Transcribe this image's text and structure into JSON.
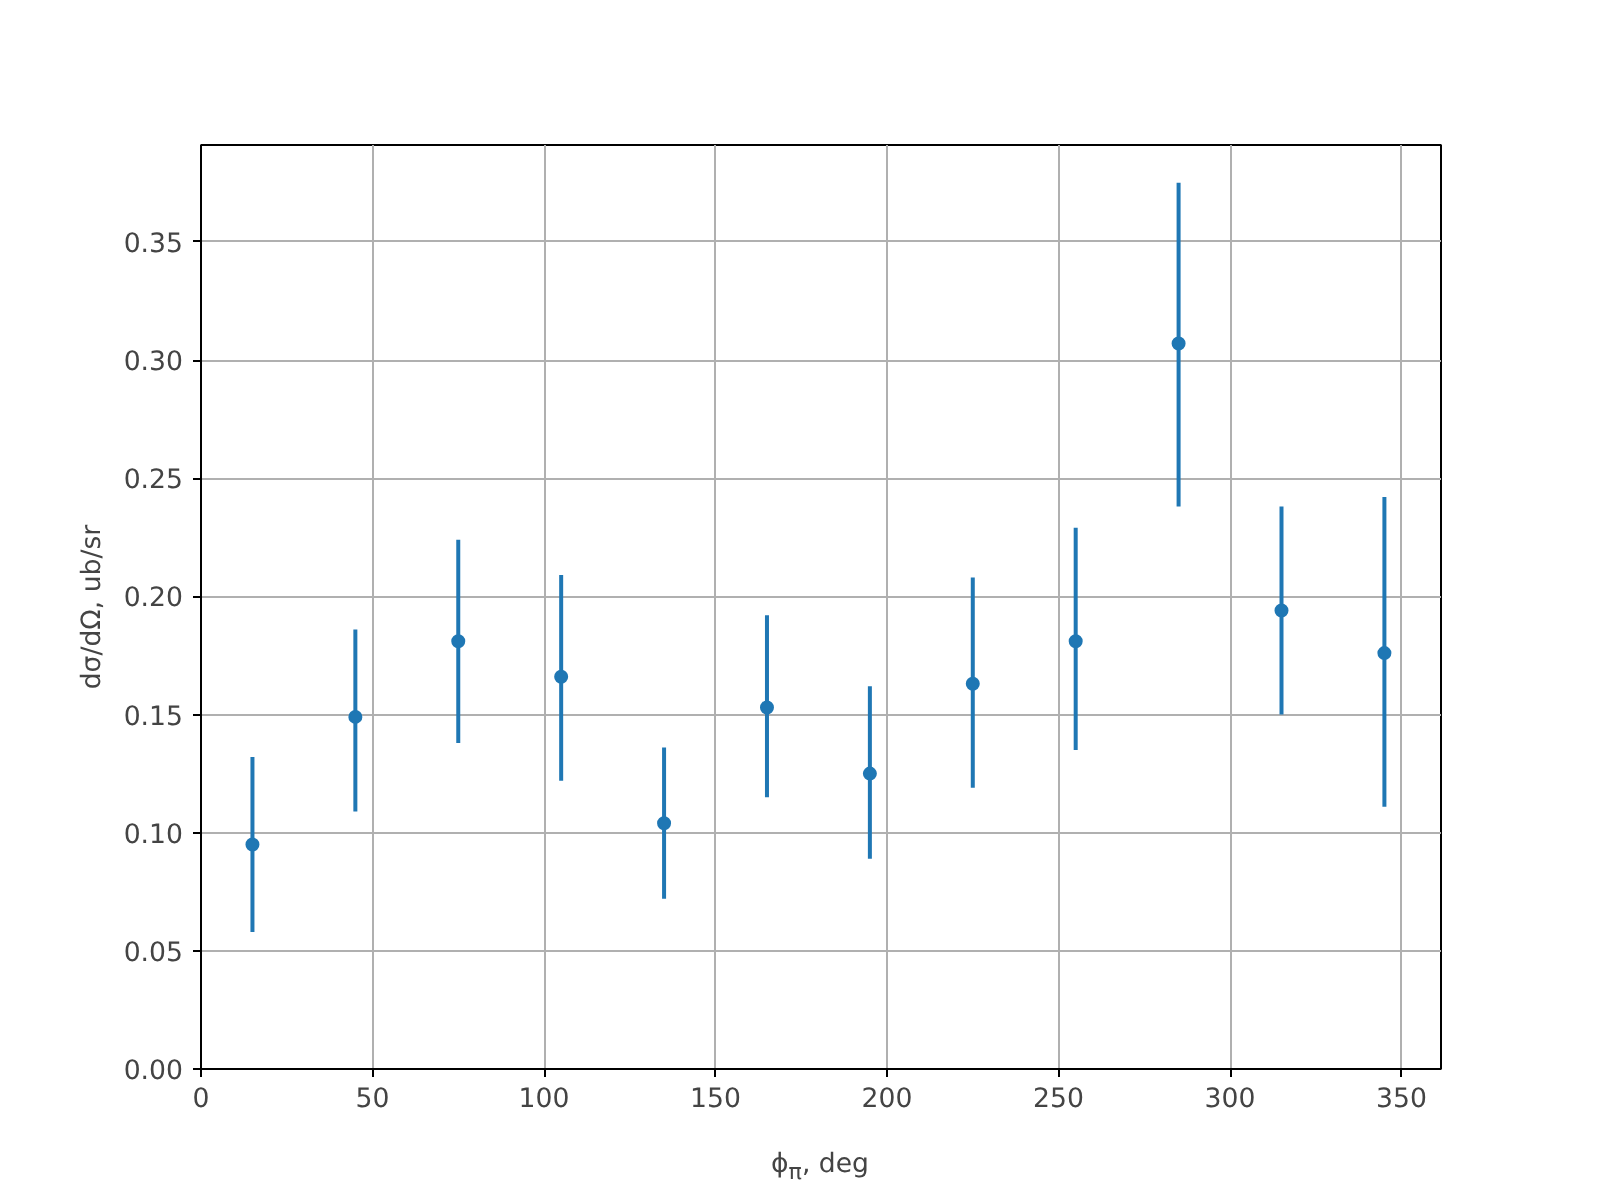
{
  "chart_data": {
    "type": "scatter",
    "xlabel": "ϕ$_{π}$, deg",
    "ylabel": "dσ/dΩ, ub/sr",
    "x": [
      15,
      45,
      75,
      105,
      135,
      165,
      195,
      225,
      255,
      285,
      315,
      345
    ],
    "series": [
      {
        "color": "#1f77b4",
        "values": [
          0.095,
          0.149,
          0.181,
          0.166,
          0.104,
          0.153,
          0.125,
          0.163,
          0.181,
          0.307,
          0.194,
          0.176
        ],
        "errors": [
          [
            0.058,
            0.132
          ],
          [
            0.109,
            0.186
          ],
          [
            0.138,
            0.224
          ],
          [
            0.122,
            0.209
          ],
          [
            0.072,
            0.136
          ],
          [
            0.115,
            0.192
          ],
          [
            0.089,
            0.162
          ],
          [
            0.119,
            0.208
          ],
          [
            0.135,
            0.229
          ],
          [
            0.238,
            0.375
          ],
          [
            0.15,
            0.238
          ],
          [
            0.111,
            0.242
          ]
        ]
      }
    ],
    "xlim": [
      0,
      361.5
    ],
    "xticks": [
      0,
      50,
      100,
      150,
      200,
      250,
      300,
      350
    ],
    "ylim": [
      0,
      0.391
    ],
    "yticks": [
      {
        "value": 0,
        "label": "0.00"
      },
      {
        "value": 0.05,
        "label": "0.05"
      },
      {
        "value": 0.1,
        "label": "0.10"
      },
      {
        "value": 0.15,
        "label": "0.15"
      },
      {
        "value": 0.2,
        "label": "0.20"
      },
      {
        "value": 0.25,
        "label": "0.25"
      },
      {
        "value": 0.3,
        "label": "0.30"
      },
      {
        "value": 0.35,
        "label": "0.35"
      }
    ],
    "grid": true,
    "marker": "circle"
  }
}
